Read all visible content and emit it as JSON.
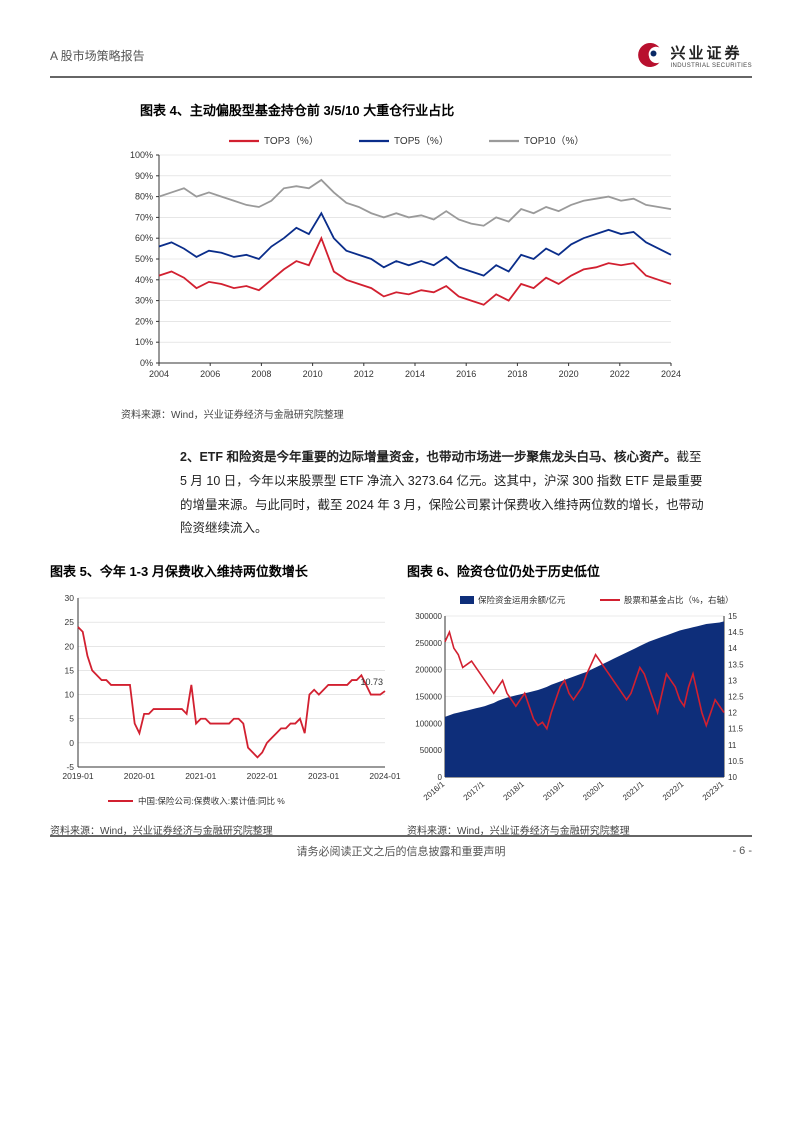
{
  "header": {
    "title": "A 股市场策略报告",
    "logo_cn": "兴业证券",
    "logo_en": "INDUSTRIAL SECURITIES",
    "logo_outer_color": "#b8102e",
    "logo_inner_color": "#0a2a66"
  },
  "chart4": {
    "title": "图表 4、主动偏股型基金持仓前 3/5/10 大重仓行业占比",
    "source": "资料来源：Wind，兴业证券经济与金融研究院整理",
    "type": "line",
    "x_labels": [
      "2004",
      "2006",
      "2008",
      "2010",
      "2012",
      "2014",
      "2016",
      "2018",
      "2020",
      "2022",
      "2024"
    ],
    "y_labels": [
      "0%",
      "10%",
      "20%",
      "30%",
      "40%",
      "50%",
      "60%",
      "70%",
      "80%",
      "90%",
      "100%"
    ],
    "ylim": [
      0,
      100
    ],
    "ytick_step": 10,
    "legend": [
      {
        "name": "TOP3（%）",
        "color": "#d22030"
      },
      {
        "name": "TOP5（%）",
        "color": "#0a2d8a"
      },
      {
        "name": "TOP10（%）",
        "color": "#9a9a9a"
      }
    ],
    "grid_color": "#d8d8d8",
    "axis_color": "#333333",
    "background_color": "#ffffff",
    "line_width": 1.8,
    "series": {
      "top3": [
        42,
        44,
        41,
        36,
        39,
        38,
        36,
        37,
        35,
        40,
        45,
        49,
        47,
        60,
        44,
        40,
        38,
        36,
        32,
        34,
        33,
        35,
        34,
        37,
        32,
        30,
        28,
        33,
        30,
        38,
        36,
        41,
        38,
        42,
        45,
        46,
        48,
        47,
        48,
        42,
        40,
        38
      ],
      "top5": [
        56,
        58,
        55,
        51,
        54,
        53,
        51,
        52,
        50,
        56,
        60,
        65,
        62,
        72,
        60,
        54,
        52,
        50,
        46,
        49,
        47,
        49,
        47,
        51,
        46,
        44,
        42,
        47,
        44,
        52,
        50,
        55,
        52,
        57,
        60,
        62,
        64,
        62,
        63,
        58,
        55,
        52
      ],
      "top10": [
        80,
        82,
        84,
        80,
        82,
        80,
        78,
        76,
        75,
        78,
        84,
        85,
        84,
        88,
        82,
        77,
        75,
        72,
        70,
        72,
        70,
        71,
        69,
        73,
        69,
        67,
        66,
        70,
        68,
        74,
        72,
        75,
        73,
        76,
        78,
        79,
        80,
        78,
        79,
        76,
        75,
        74
      ]
    }
  },
  "body": {
    "lead_bold": "2、ETF 和险资是今年重要的边际增量资金，也带动市场进一步聚焦龙头白马、核心资产。",
    "rest": "截至 5 月 10 日，今年以来股票型 ETF 净流入 3273.64 亿元。这其中，沪深 300 指数 ETF 是最重要的增量来源。与此同时，截至 2024 年 3 月，保险公司累计保费收入维持两位数的增长，也带动险资继续流入。"
  },
  "chart5": {
    "title": "图表 5、今年 1-3 月保费收入维持两位数增长",
    "source": "资料来源：Wind，兴业证券经济与金融研究院整理",
    "type": "line",
    "x_labels": [
      "2019-01",
      "2020-01",
      "2021-01",
      "2022-01",
      "2023-01",
      "2024-01"
    ],
    "y_labels": [
      "-5",
      "0",
      "5",
      "10",
      "15",
      "20",
      "25",
      "30"
    ],
    "ylim": [
      -5,
      30
    ],
    "legend": [
      {
        "name": "中国:保险公司:保费收入:累计值:同比 %",
        "color": "#d22030"
      }
    ],
    "grid_color": "#d8d8d8",
    "axis_color": "#333333",
    "line_width": 1.8,
    "end_label": "10.73",
    "series": [
      24,
      23,
      18,
      15,
      14,
      13,
      13,
      12,
      12,
      12,
      12,
      12,
      4,
      2,
      6,
      6,
      7,
      7,
      7,
      7,
      7,
      7,
      7,
      6,
      12,
      4,
      5,
      5,
      4,
      4,
      4,
      4,
      4,
      5,
      5,
      4,
      -1,
      -2,
      -3,
      -2,
      0,
      1,
      2,
      3,
      3,
      4,
      4,
      5,
      2,
      10,
      11,
      10,
      11,
      12,
      12,
      12,
      12,
      12,
      13,
      13,
      14,
      12,
      10,
      10,
      10,
      10.73
    ]
  },
  "chart6": {
    "title": "图表 6、险资仓位仍处于历史低位",
    "source": "资料来源：Wind，兴业证券经济与金融研究院整理",
    "type": "combo",
    "x_labels": [
      "2016/1",
      "2017/1",
      "2018/1",
      "2019/1",
      "2020/1",
      "2021/1",
      "2022/1",
      "2023/1"
    ],
    "y_left": {
      "labels": [
        "0",
        "50000",
        "100000",
        "150000",
        "200000",
        "250000",
        "300000"
      ],
      "lim": [
        0,
        300000
      ],
      "step": 50000
    },
    "y_right": {
      "labels": [
        "10",
        "10.5",
        "11",
        "11.5",
        "12",
        "12.5",
        "13",
        "13.5",
        "14",
        "14.5",
        "15"
      ],
      "lim": [
        10,
        15
      ],
      "step": 0.5
    },
    "legend": [
      {
        "name": "保险资金运用余额/亿元",
        "color": "#0e2e7a",
        "type": "area"
      },
      {
        "name": "股票和基金占比（%，右轴）",
        "color": "#d22030",
        "type": "line"
      }
    ],
    "grid_color": "#d8d8d8",
    "axis_color": "#333333",
    "line_width": 1.6,
    "area_values": [
      112000,
      115000,
      118000,
      120000,
      122000,
      124000,
      126000,
      128000,
      130000,
      132000,
      135000,
      138000,
      142000,
      145000,
      148000,
      150000,
      152000,
      154000,
      156000,
      158000,
      160000,
      162000,
      165000,
      168000,
      172000,
      175000,
      178000,
      181000,
      184000,
      187000,
      190000,
      193000,
      196000,
      200000,
      204000,
      208000,
      212000,
      216000,
      220000,
      224000,
      228000,
      232000,
      236000,
      240000,
      244000,
      248000,
      252000,
      255000,
      258000,
      261000,
      264000,
      267000,
      270000,
      273000,
      275000,
      277000,
      279000,
      281000,
      283000,
      285000,
      286000,
      287000,
      288000,
      290000
    ],
    "line_values": [
      14.2,
      14.5,
      14.0,
      13.8,
      13.4,
      13.5,
      13.6,
      13.4,
      13.2,
      13.0,
      12.8,
      12.6,
      12.8,
      13.0,
      12.6,
      12.4,
      12.2,
      12.4,
      12.6,
      12.2,
      11.8,
      11.6,
      11.7,
      11.5,
      12.0,
      12.4,
      12.8,
      13.0,
      12.6,
      12.4,
      12.6,
      12.8,
      13.2,
      13.5,
      13.8,
      13.6,
      13.4,
      13.2,
      13.0,
      12.8,
      12.6,
      12.4,
      12.6,
      13.0,
      13.4,
      13.2,
      12.8,
      12.4,
      12.0,
      12.6,
      13.2,
      13.0,
      12.8,
      12.4,
      12.2,
      12.8,
      13.2,
      12.6,
      12.0,
      11.6,
      12.0,
      12.4,
      12.2,
      12.0
    ]
  },
  "footer": {
    "text": "请务必阅读正文之后的信息披露和重要声明",
    "page": "- 6 -"
  }
}
